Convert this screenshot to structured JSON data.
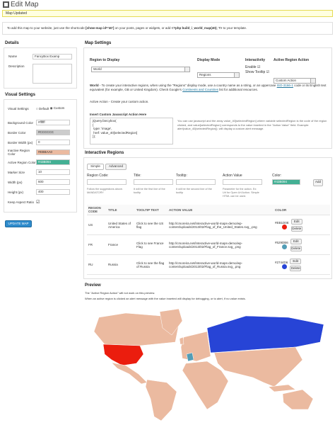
{
  "header": {
    "title": "Edit Map",
    "notice": "Map Updated"
  },
  "shortcode": [
    "To add this map to your website, just use the shortcode ",
    "[show-map id='40']",
    " on your posts, pages or widgets, or add ",
    "<?php build_i_world_map(40); ?>",
    " to your template."
  ],
  "details": {
    "heading": "Details",
    "name_label": "Name",
    "name_value": "FancyBox Examp",
    "description_label": "Description"
  },
  "visual": {
    "heading": "Visual Settings",
    "mode_label": "Visual Settings",
    "options": [
      "Default",
      "Custom"
    ],
    "fields": [
      {
        "label": "Background Color",
        "value": "#ffffff"
      },
      {
        "label": "Border Color",
        "value": "#CCCCCC"
      },
      {
        "label": "Border Width (px)",
        "value": "0"
      },
      {
        "label": "Inactive Region Color",
        "value": "#EBBAA0"
      },
      {
        "label": "Active Region Color",
        "value": "#43B094"
      },
      {
        "label": "Marker Size",
        "value": "10"
      },
      {
        "label": "Width (px)",
        "value": "600"
      },
      {
        "label": "Height (px)",
        "value": "400"
      }
    ],
    "keep_label": "Keep Aspect Ratio",
    "button": "UPDATE MAP"
  },
  "map_settings": {
    "heading": "Map Settings",
    "region_label": "Region to Display",
    "region_value": "World",
    "mode_label": "Display Mode",
    "mode_value": "Regions",
    "interactivity_label": "Interactivity",
    "enable": "Enable",
    "tooltip": "Show Tooltip",
    "action_label": "Active Region Action",
    "action_value": "Custom Action",
    "help": [
      "World",
      " - To create your interactive regions, when using the \"Regions\" display mode, use a country name as a string, or an uppercase ",
      "ISO-3166-1",
      " code or its English text equivalent (for example, GB or United Kingdom). Check Google's ",
      "Continents and Countries",
      " list for additional resources."
    ],
    "action_help": "Active Action - Create your custom action.",
    "js_label": "Insert Custom Javascript Action Here",
    "js_code": "jQuery.fancybox(\n{\n type: 'image',\n href: value_40[selectedRegion]\n});",
    "js_note": "You can use javascript and the array value_40[selectedRegion] where variable selectedRegion is the code of the region clicked, and value[selectedRegion] corresponds to the value inserted in the \"Action Value\" field. Example: alert(value_40[selectedRegion]); will display a custom alert message."
  },
  "regions": {
    "heading": "Interactive Regions",
    "tabs": [
      "Simple",
      "Advanced"
    ],
    "form": [
      {
        "label": "Region Code:",
        "help": "Follow the suggestions above. MANDATORY"
      },
      {
        "label": "Title:",
        "help": "It will be the first line of the tooltip"
      },
      {
        "label": "Tooltip:",
        "help": "It will be the second line of the tooltip"
      },
      {
        "label": "Action Value",
        "help": "Parameter for the action. Ex: Url for Open Url Action. Simple HTML can be used."
      }
    ],
    "color_label": "Color:",
    "color_value": "#43B094",
    "add": "Add",
    "columns": [
      "REGION CODE",
      "TITLE",
      "TOOLTIP TEXT",
      "ACTION VALUE",
      "COLOR"
    ],
    "rows": [
      {
        "code": "US",
        "title": "United States of America",
        "tooltip": "Click to see the US flag",
        "action": "http://cmoreira.net/interactive-world-maps-demo/wp-content/uploads/2013/02/Flag_of_the_United_States.svg_.png",
        "color": "#EB1D0E"
      },
      {
        "code": "FR",
        "title": "France",
        "tooltip": "Click to see France Flag",
        "action": "http://cmoreira.net/interactive-world-maps-demo/wp-content/uploads/2013/02/Flag_of_France.svg_.png",
        "color": "#529DB6"
      },
      {
        "code": "RU",
        "title": "Russia",
        "tooltip": "Click to see the flag of Russia",
        "action": "http://cmoreira.net/interactive-world-maps-demo/wp-content/uploads/2013/02/Flag_of_Russia.svg_.png",
        "color": "#2744D6"
      }
    ],
    "edit": "Edit",
    "delete": "Delete"
  },
  "preview": {
    "heading": "Preview",
    "note1": "The \"Active Region Action\" will not work on this preview.",
    "note2": "When an active region is clicked an alert message with the value inserted will display for debugging, or to alert, if no value exists."
  }
}
